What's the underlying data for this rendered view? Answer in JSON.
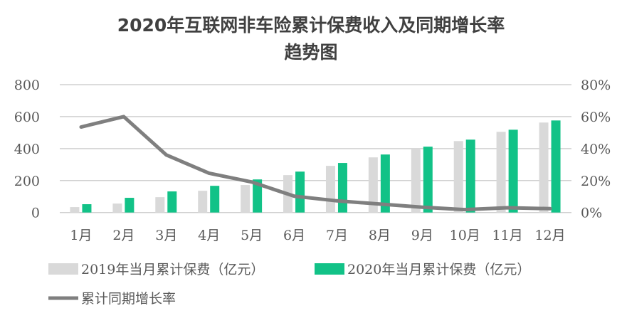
{
  "chart_data": {
    "type": "bar+line",
    "title_lines": [
      "2020年互联网非车险累计保费收入及同期增长率",
      "趋势图"
    ],
    "categories": [
      "1月",
      "2月",
      "3月",
      "4月",
      "5月",
      "6月",
      "7月",
      "8月",
      "9月",
      "10月",
      "11月",
      "12月"
    ],
    "series": [
      {
        "name": "2019年当月累计保费（亿元）",
        "type": "bar",
        "axis": "left",
        "color": "#d9d9d9",
        "values": [
          34,
          56,
          96,
          136,
          172,
          234,
          292,
          345,
          400,
          447,
          505,
          563
        ]
      },
      {
        "name": "2020年当月累计保费（亿元）",
        "type": "bar",
        "axis": "left",
        "color": "#12c287",
        "values": [
          52,
          92,
          132,
          167,
          207,
          256,
          310,
          363,
          412,
          456,
          518,
          576
        ]
      },
      {
        "name": "累计同期增长率",
        "type": "line",
        "axis": "right",
        "color": "#7f7f7f",
        "values": [
          53.5,
          60,
          36,
          24.6,
          19.1,
          10.2,
          7.3,
          5.3,
          3.3,
          1.8,
          3.0,
          2.4
        ]
      }
    ],
    "ylim": [
      0,
      800
    ],
    "yticks": [
      "0",
      "200",
      "400",
      "600",
      "800"
    ],
    "y2lim": [
      0,
      80
    ],
    "y2ticks": [
      "0%",
      "20%",
      "40%",
      "60%",
      "80%"
    ],
    "grid": true,
    "legend_position": "bottom"
  }
}
